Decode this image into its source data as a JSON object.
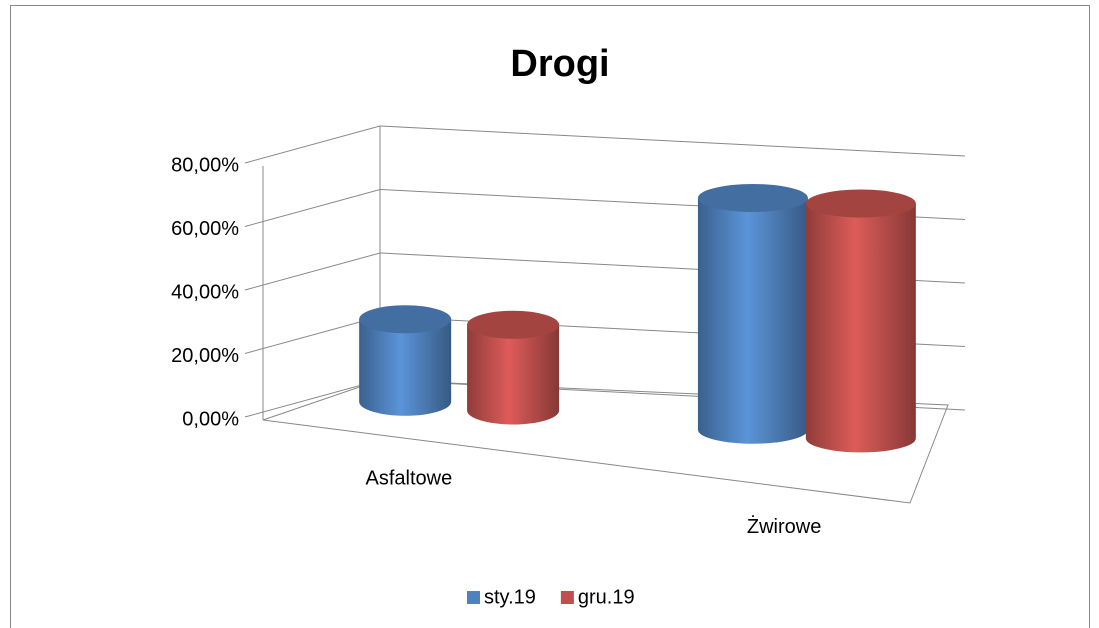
{
  "chart_data": {
    "type": "bar3d-cylinder",
    "title": "Drogi",
    "categories": [
      "Asfaltowe",
      "Żwirowe"
    ],
    "series": [
      {
        "name": "sty.19",
        "color": "#4f81bd",
        "values": [
          26,
          73
        ]
      },
      {
        "name": "gru.19",
        "color": "#c0504d",
        "values": [
          27,
          74
        ]
      }
    ],
    "ylim": [
      0,
      80
    ],
    "yticks": [
      {
        "value": 0,
        "label": "0,00%"
      },
      {
        "value": 20,
        "label": "20,00%"
      },
      {
        "value": 40,
        "label": "40,00%"
      },
      {
        "value": 60,
        "label": "60,00%"
      },
      {
        "value": 80,
        "label": "80,00%"
      }
    ],
    "grid": true,
    "legend": "bottom"
  }
}
